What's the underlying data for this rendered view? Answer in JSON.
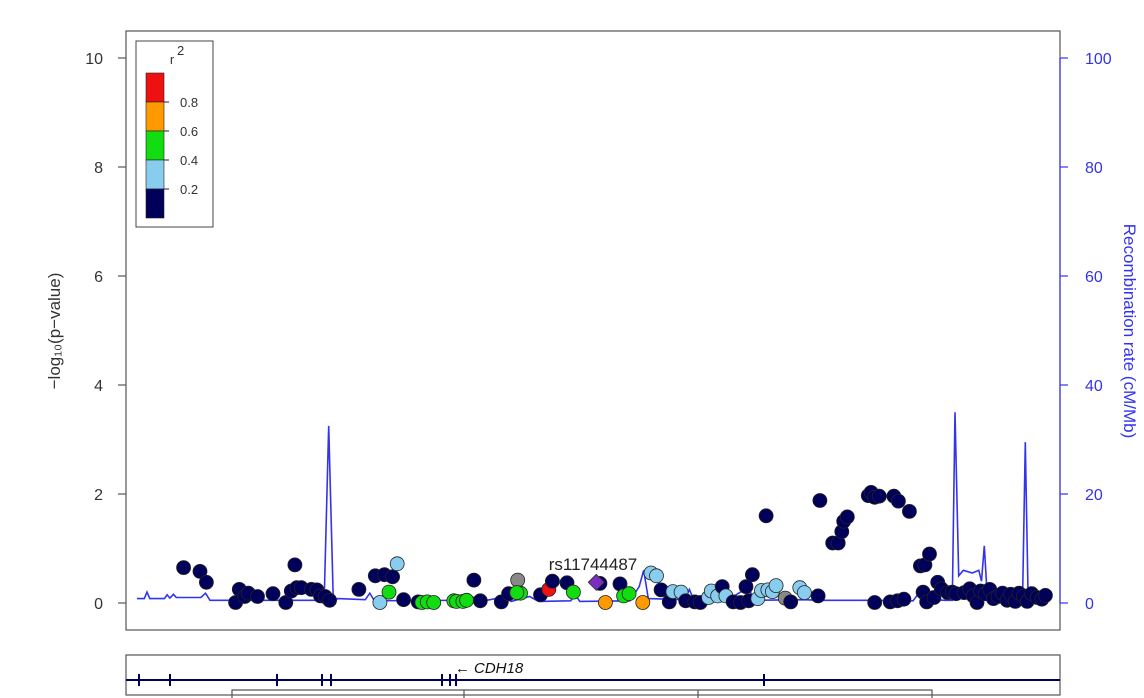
{
  "chart_data": {
    "type": "scatter",
    "ylabel": "−log₁₀(p−value)",
    "ylabel_right": "Recombination rate (cM/Mb)",
    "ylim": [
      0,
      10.5
    ],
    "ylim_right": [
      0,
      105
    ],
    "yticks": [
      "0",
      "2",
      "4",
      "6",
      "8",
      "10"
    ],
    "yticks_right": [
      "0",
      "20",
      "40",
      "60",
      "80",
      "100"
    ],
    "xlim": [
      0,
      100
    ],
    "legend": {
      "title": "r",
      "title_sup": "2",
      "position": "top-left",
      "bins": [
        {
          "color": "#ee1111",
          "range": [
            0.8,
            1.0
          ]
        },
        {
          "color": "#ff9900",
          "range": [
            0.6,
            0.8
          ]
        },
        {
          "color": "#11dd11",
          "range": [
            0.4,
            0.6
          ]
        },
        {
          "color": "#88ccee",
          "range": [
            0.2,
            0.4
          ]
        },
        {
          "color": "#00005a",
          "range": [
            0.0,
            0.2
          ]
        }
      ],
      "labels": [
        "0.8",
        "0.6",
        "0.4",
        "0.2"
      ]
    },
    "lead_snp": {
      "label": "rs11744487",
      "x": 50.3,
      "y": 0.38,
      "color": "#7b2fbe"
    },
    "gene": {
      "name": "CDH18",
      "direction": "←"
    },
    "colors": {
      "dark": "#00005a",
      "light": "#88ccee",
      "green": "#11dd11",
      "orange": "#ff9900",
      "red": "#ee1111",
      "gray": "#888888",
      "recomb": "#3333ee"
    },
    "recombination": [
      [
        0,
        0.8
      ],
      [
        0.8,
        0.8
      ],
      [
        1.1,
        2.0
      ],
      [
        1.4,
        0.8
      ],
      [
        3.0,
        0.8
      ],
      [
        3.3,
        1.5
      ],
      [
        3.6,
        0.9
      ],
      [
        4.0,
        1.6
      ],
      [
        4.3,
        1.0
      ],
      [
        7.0,
        1.0
      ],
      [
        7.5,
        1.8
      ],
      [
        8.0,
        0.5
      ],
      [
        20.0,
        0.5
      ],
      [
        20.5,
        0.6
      ],
      [
        21.0,
        32.5
      ],
      [
        21.5,
        0.4
      ],
      [
        22.0,
        0.8
      ],
      [
        25.0,
        0.6
      ],
      [
        25.5,
        1.8
      ],
      [
        26.0,
        0.4
      ],
      [
        34.0,
        0.5
      ],
      [
        36.0,
        1.5
      ],
      [
        38.0,
        0.4
      ],
      [
        40.0,
        1.0
      ],
      [
        41.0,
        0.3
      ],
      [
        43.0,
        1.2
      ],
      [
        44.0,
        0.3
      ],
      [
        47.5,
        0.4
      ],
      [
        48.0,
        1.5
      ],
      [
        48.5,
        0.3
      ],
      [
        54.0,
        0.4
      ],
      [
        55.0,
        3.0
      ],
      [
        55.5,
        6.0
      ],
      [
        56.0,
        0.8
      ],
      [
        60.0,
        0.6
      ],
      [
        60.5,
        2.5
      ],
      [
        61.0,
        0.5
      ],
      [
        65.0,
        0.8
      ],
      [
        67.0,
        3.0
      ],
      [
        67.5,
        0.5
      ],
      [
        73.0,
        0.6
      ],
      [
        75.0,
        0.5
      ],
      [
        77.0,
        0.5
      ],
      [
        79.0,
        0.5
      ],
      [
        80.0,
        0.5
      ],
      [
        85.0,
        0.4
      ],
      [
        85.5,
        1.5
      ],
      [
        86.0,
        0.5
      ],
      [
        87.5,
        0.6
      ],
      [
        88.5,
        0.5
      ],
      [
        89.3,
        0.5
      ],
      [
        89.6,
        35.0
      ],
      [
        90.0,
        5.0
      ],
      [
        90.5,
        6.0
      ],
      [
        91.5,
        5.5
      ],
      [
        92.2,
        6.0
      ],
      [
        92.5,
        4.0
      ],
      [
        92.8,
        10.5
      ],
      [
        93.1,
        2.0
      ],
      [
        93.5,
        0.8
      ],
      [
        94.5,
        0.5
      ],
      [
        95.0,
        1.0
      ],
      [
        95.3,
        1.5
      ],
      [
        97.0,
        1.0
      ],
      [
        97.3,
        29.5
      ],
      [
        97.6,
        1.0
      ],
      [
        98.5,
        0.8
      ],
      [
        99.5,
        0.6
      ],
      [
        100,
        0.6
      ]
    ],
    "points": [
      [
        5.1,
        0.65,
        "dark"
      ],
      [
        6.9,
        0.58,
        "dark"
      ],
      [
        7.6,
        0.38,
        "dark"
      ],
      [
        10.8,
        0.01,
        "dark"
      ],
      [
        11.2,
        0.25,
        "dark"
      ],
      [
        11.8,
        0.12,
        "dark"
      ],
      [
        12.2,
        0.18,
        "dark"
      ],
      [
        13.2,
        0.12,
        "dark"
      ],
      [
        14.9,
        0.17,
        "dark"
      ],
      [
        16.3,
        0.01,
        "dark"
      ],
      [
        16.9,
        0.22,
        "dark"
      ],
      [
        17.3,
        0.7,
        "dark"
      ],
      [
        17.5,
        0.28,
        "dark"
      ],
      [
        18.0,
        0.28,
        "dark"
      ],
      [
        19.1,
        0.25,
        "dark"
      ],
      [
        19.7,
        0.24,
        "dark"
      ],
      [
        20.1,
        0.13,
        "dark"
      ],
      [
        20.6,
        0.12,
        "dark"
      ],
      [
        21.1,
        0.05,
        "dark"
      ],
      [
        24.3,
        0.25,
        "dark"
      ],
      [
        26.1,
        0.5,
        "dark"
      ],
      [
        26.6,
        0.01,
        "light"
      ],
      [
        27.1,
        0.52,
        "dark"
      ],
      [
        27.6,
        0.2,
        "green"
      ],
      [
        28.0,
        0.48,
        "dark"
      ],
      [
        28.5,
        0.72,
        "light"
      ],
      [
        29.2,
        0.06,
        "dark"
      ],
      [
        30.8,
        0.02,
        "dark"
      ],
      [
        31.2,
        0.01,
        "green"
      ],
      [
        31.8,
        0.02,
        "green"
      ],
      [
        32.5,
        0.01,
        "green"
      ],
      [
        34.7,
        0.04,
        "green"
      ],
      [
        35.0,
        0.03,
        "green"
      ],
      [
        35.7,
        0.03,
        "green"
      ],
      [
        36.1,
        0.05,
        "green"
      ],
      [
        36.9,
        0.42,
        "dark"
      ],
      [
        37.6,
        0.04,
        "dark"
      ],
      [
        39.9,
        0.02,
        "dark"
      ],
      [
        40.7,
        0.17,
        "dark"
      ],
      [
        41.7,
        0.42,
        "gray"
      ],
      [
        42.0,
        0.18,
        "green"
      ],
      [
        41.6,
        0.19,
        "green"
      ],
      [
        44.2,
        0.15,
        "dark"
      ],
      [
        45.1,
        0.25,
        "red"
      ],
      [
        45.5,
        0.4,
        "dark"
      ],
      [
        47.1,
        0.37,
        "dark"
      ],
      [
        47.8,
        0.2,
        "green"
      ],
      [
        50.7,
        0.36,
        "dark"
      ],
      [
        51.3,
        0.01,
        "orange"
      ],
      [
        52.9,
        0.35,
        "dark"
      ],
      [
        53.3,
        0.13,
        "green"
      ],
      [
        53.9,
        0.17,
        "green"
      ],
      [
        55.4,
        0.01,
        "orange"
      ],
      [
        56.3,
        0.55,
        "light"
      ],
      [
        56.9,
        0.5,
        "light"
      ],
      [
        57.4,
        0.24,
        "dark"
      ],
      [
        58.3,
        0.02,
        "dark"
      ],
      [
        58.7,
        0.21,
        "light"
      ],
      [
        59.6,
        0.2,
        "light"
      ],
      [
        60.1,
        0.04,
        "dark"
      ],
      [
        61.1,
        0.02,
        "dark"
      ],
      [
        61.7,
        0.01,
        "dark"
      ],
      [
        62.6,
        0.1,
        "light"
      ],
      [
        62.9,
        0.22,
        "light"
      ],
      [
        63.6,
        0.13,
        "light"
      ],
      [
        64.1,
        0.3,
        "dark"
      ],
      [
        64.5,
        0.13,
        "light"
      ],
      [
        65.3,
        0.02,
        "dark"
      ],
      [
        66.1,
        0.01,
        "dark"
      ],
      [
        66.7,
        0.3,
        "dark"
      ],
      [
        67.0,
        0.04,
        "dark"
      ],
      [
        67.4,
        0.52,
        "dark"
      ],
      [
        68.0,
        0.08,
        "light"
      ],
      [
        68.4,
        0.23,
        "light"
      ],
      [
        68.9,
        1.6,
        "dark"
      ],
      [
        69.1,
        0.24,
        "light"
      ],
      [
        69.6,
        0.21,
        "light"
      ],
      [
        70.0,
        0.32,
        "light"
      ],
      [
        71.0,
        0.09,
        "gray"
      ],
      [
        71.6,
        0.02,
        "dark"
      ],
      [
        72.6,
        0.28,
        "light"
      ],
      [
        73.1,
        0.19,
        "light"
      ],
      [
        74.6,
        0.13,
        "dark"
      ],
      [
        74.8,
        1.88,
        "dark"
      ],
      [
        76.2,
        1.1,
        "dark"
      ],
      [
        76.8,
        1.1,
        "dark"
      ],
      [
        77.2,
        1.31,
        "dark"
      ],
      [
        77.4,
        1.5,
        "dark"
      ],
      [
        77.8,
        1.58,
        "dark"
      ],
      [
        80.1,
        1.97,
        "dark"
      ],
      [
        80.4,
        2.03,
        "dark"
      ],
      [
        80.8,
        1.94,
        "dark"
      ],
      [
        81.3,
        1.96,
        "dark"
      ],
      [
        82.9,
        1.96,
        "dark"
      ],
      [
        83.4,
        1.87,
        "dark"
      ],
      [
        84.6,
        1.68,
        "dark"
      ],
      [
        80.8,
        0.01,
        "dark"
      ],
      [
        82.5,
        0.02,
        "dark"
      ],
      [
        83.3,
        0.04,
        "dark"
      ],
      [
        84.0,
        0.07,
        "dark"
      ],
      [
        85.8,
        0.68,
        "dark"
      ],
      [
        86.3,
        0.7,
        "dark"
      ],
      [
        86.8,
        0.9,
        "dark"
      ],
      [
        86.1,
        0.2,
        "dark"
      ],
      [
        86.5,
        0.02,
        "dark"
      ],
      [
        87.3,
        0.1,
        "dark"
      ],
      [
        87.7,
        0.38,
        "dark"
      ],
      [
        88.1,
        0.26,
        "dark"
      ],
      [
        88.8,
        0.19,
        "dark"
      ],
      [
        89.3,
        0.2,
        "dark"
      ],
      [
        89.7,
        0.17,
        "dark"
      ],
      [
        90.6,
        0.19,
        "dark"
      ],
      [
        91.2,
        0.26,
        "dark"
      ],
      [
        91.6,
        0.13,
        "dark"
      ],
      [
        92.0,
        0.01,
        "dark"
      ],
      [
        92.4,
        0.22,
        "dark"
      ],
      [
        92.9,
        0.17,
        "dark"
      ],
      [
        93.4,
        0.25,
        "dark"
      ],
      [
        93.8,
        0.08,
        "dark"
      ],
      [
        94.3,
        0.12,
        "dark"
      ],
      [
        94.8,
        0.18,
        "dark"
      ],
      [
        95.3,
        0.05,
        "dark"
      ],
      [
        95.7,
        0.16,
        "dark"
      ],
      [
        96.2,
        0.03,
        "dark"
      ],
      [
        96.6,
        0.18,
        "dark"
      ],
      [
        97.1,
        0.13,
        "dark"
      ],
      [
        97.5,
        0.03,
        "dark"
      ],
      [
        98.0,
        0.17,
        "dark"
      ],
      [
        98.6,
        0.1,
        "dark"
      ],
      [
        99.1,
        0.07,
        "dark"
      ],
      [
        99.5,
        0.14,
        "dark"
      ]
    ]
  }
}
